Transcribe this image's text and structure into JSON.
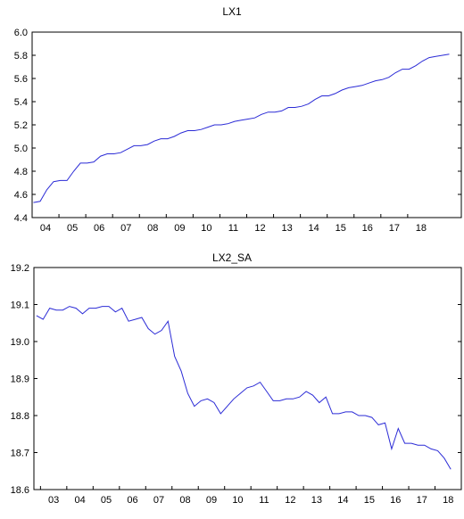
{
  "chart_data": [
    {
      "type": "line",
      "title": "LX1",
      "xlabel": "",
      "ylabel": "",
      "grid": false,
      "ylim": [
        4.4,
        6.0
      ],
      "xlim": [
        2003.0,
        2019.0
      ],
      "yticks": [
        "4.4",
        "4.6",
        "4.8",
        "5.0",
        "5.2",
        "5.4",
        "5.6",
        "5.8",
        "6.0"
      ],
      "xticks": [
        "04",
        "05",
        "06",
        "07",
        "08",
        "09",
        "10",
        "11",
        "12",
        "13",
        "14",
        "15",
        "16",
        "17",
        "18"
      ],
      "series": [
        {
          "color": "#2b2bd6",
          "points": [
            [
              2003.05,
              4.53
            ],
            [
              2003.3,
              4.54
            ],
            [
              2003.55,
              4.64
            ],
            [
              2003.8,
              4.71
            ],
            [
              2004.05,
              4.72
            ],
            [
              2004.3,
              4.72
            ],
            [
              2004.55,
              4.8
            ],
            [
              2004.8,
              4.87
            ],
            [
              2005.05,
              4.87
            ],
            [
              2005.3,
              4.88
            ],
            [
              2005.55,
              4.93
            ],
            [
              2005.8,
              4.95
            ],
            [
              2006.05,
              4.95
            ],
            [
              2006.3,
              4.96
            ],
            [
              2006.55,
              4.99
            ],
            [
              2006.8,
              5.02
            ],
            [
              2007.05,
              5.02
            ],
            [
              2007.3,
              5.03
            ],
            [
              2007.55,
              5.06
            ],
            [
              2007.8,
              5.08
            ],
            [
              2008.05,
              5.08
            ],
            [
              2008.3,
              5.1
            ],
            [
              2008.55,
              5.13
            ],
            [
              2008.8,
              5.15
            ],
            [
              2009.05,
              5.15
            ],
            [
              2009.3,
              5.16
            ],
            [
              2009.55,
              5.18
            ],
            [
              2009.8,
              5.2
            ],
            [
              2010.05,
              5.2
            ],
            [
              2010.3,
              5.21
            ],
            [
              2010.55,
              5.23
            ],
            [
              2010.8,
              5.24
            ],
            [
              2011.05,
              5.25
            ],
            [
              2011.3,
              5.26
            ],
            [
              2011.55,
              5.29
            ],
            [
              2011.8,
              5.31
            ],
            [
              2012.05,
              5.31
            ],
            [
              2012.3,
              5.32
            ],
            [
              2012.55,
              5.35
            ],
            [
              2012.8,
              5.35
            ],
            [
              2013.05,
              5.36
            ],
            [
              2013.3,
              5.38
            ],
            [
              2013.55,
              5.42
            ],
            [
              2013.8,
              5.45
            ],
            [
              2014.05,
              5.45
            ],
            [
              2014.3,
              5.47
            ],
            [
              2014.55,
              5.5
            ],
            [
              2014.8,
              5.52
            ],
            [
              2015.05,
              5.53
            ],
            [
              2015.3,
              5.54
            ],
            [
              2015.55,
              5.56
            ],
            [
              2015.8,
              5.58
            ],
            [
              2016.05,
              5.59
            ],
            [
              2016.3,
              5.61
            ],
            [
              2016.55,
              5.65
            ],
            [
              2016.8,
              5.68
            ],
            [
              2017.05,
              5.68
            ],
            [
              2017.3,
              5.71
            ],
            [
              2017.55,
              5.75
            ],
            [
              2017.8,
              5.78
            ],
            [
              2018.05,
              5.79
            ],
            [
              2018.3,
              5.8
            ],
            [
              2018.55,
              5.81
            ]
          ]
        }
      ]
    },
    {
      "type": "line",
      "title": "LX2_SA",
      "xlabel": "",
      "ylabel": "",
      "grid": false,
      "ylim": [
        18.6,
        19.2
      ],
      "xlim": [
        2002.75,
        2019.0
      ],
      "yticks": [
        "18.6",
        "18.7",
        "18.8",
        "18.9",
        "19.0",
        "19.1",
        "19.2"
      ],
      "xticks": [
        "03",
        "04",
        "05",
        "06",
        "07",
        "08",
        "09",
        "10",
        "11",
        "12",
        "13",
        "14",
        "15",
        "16",
        "17",
        "18"
      ],
      "series": [
        {
          "color": "#2b2bd6",
          "points": [
            [
              2002.85,
              19.07
            ],
            [
              2003.1,
              19.06
            ],
            [
              2003.35,
              19.09
            ],
            [
              2003.6,
              19.085
            ],
            [
              2003.85,
              19.085
            ],
            [
              2004.1,
              19.095
            ],
            [
              2004.35,
              19.09
            ],
            [
              2004.6,
              19.075
            ],
            [
              2004.85,
              19.09
            ],
            [
              2005.1,
              19.09
            ],
            [
              2005.35,
              19.095
            ],
            [
              2005.6,
              19.095
            ],
            [
              2005.85,
              19.08
            ],
            [
              2006.1,
              19.09
            ],
            [
              2006.35,
              19.055
            ],
            [
              2006.6,
              19.06
            ],
            [
              2006.85,
              19.065
            ],
            [
              2007.1,
              19.035
            ],
            [
              2007.35,
              19.02
            ],
            [
              2007.6,
              19.03
            ],
            [
              2007.85,
              19.055
            ],
            [
              2008.1,
              18.96
            ],
            [
              2008.35,
              18.92
            ],
            [
              2008.6,
              18.86
            ],
            [
              2008.85,
              18.825
            ],
            [
              2009.1,
              18.84
            ],
            [
              2009.35,
              18.845
            ],
            [
              2009.6,
              18.835
            ],
            [
              2009.85,
              18.805
            ],
            [
              2010.1,
              18.825
            ],
            [
              2010.35,
              18.845
            ],
            [
              2010.6,
              18.86
            ],
            [
              2010.85,
              18.875
            ],
            [
              2011.1,
              18.88
            ],
            [
              2011.35,
              18.89
            ],
            [
              2011.6,
              18.865
            ],
            [
              2011.85,
              18.84
            ],
            [
              2012.1,
              18.84
            ],
            [
              2012.35,
              18.845
            ],
            [
              2012.6,
              18.845
            ],
            [
              2012.85,
              18.85
            ],
            [
              2013.1,
              18.865
            ],
            [
              2013.35,
              18.855
            ],
            [
              2013.6,
              18.835
            ],
            [
              2013.85,
              18.85
            ],
            [
              2014.1,
              18.805
            ],
            [
              2014.35,
              18.805
            ],
            [
              2014.6,
              18.81
            ],
            [
              2014.85,
              18.81
            ],
            [
              2015.1,
              18.8
            ],
            [
              2015.35,
              18.8
            ],
            [
              2015.6,
              18.795
            ],
            [
              2015.85,
              18.775
            ],
            [
              2016.1,
              18.78
            ],
            [
              2016.35,
              18.71
            ],
            [
              2016.6,
              18.765
            ],
            [
              2016.85,
              18.725
            ],
            [
              2017.1,
              18.725
            ],
            [
              2017.35,
              18.72
            ],
            [
              2017.6,
              18.72
            ],
            [
              2017.85,
              18.71
            ],
            [
              2018.1,
              18.705
            ],
            [
              2018.35,
              18.685
            ],
            [
              2018.6,
              18.655
            ]
          ]
        }
      ]
    }
  ]
}
